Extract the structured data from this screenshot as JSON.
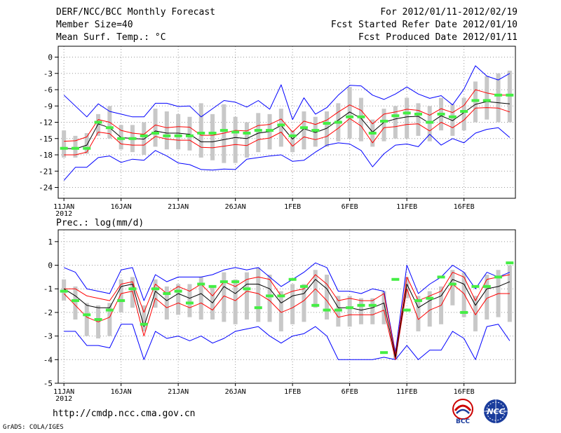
{
  "header": {
    "title": "DERF/NCC/BCC Monthly Forecast",
    "member_size": "Member Size=40",
    "variable": "Mean Surf. Temp.: °C",
    "period": "For 2012/01/11-2012/02/19",
    "started": "Fcst Started Refer Date 2012/01/10",
    "produced": "Fcst Produced Date 2012/01/11"
  },
  "footer": {
    "url": "http://cmdp.ncc.cma.gov.cn",
    "grads": "GrADS: COLA/IGES",
    "logo_bcc_text": "BCC",
    "logo_ncc_text": "NCC"
  },
  "colors": {
    "ensemble_mean": "#000000",
    "spread_lines": "#ff0000",
    "extreme_lines": "#0000ff",
    "member_box": "#c8c8c8",
    "climate_mark": "#44ee44",
    "grid": "#999999"
  },
  "chart_data": [
    {
      "type": "line",
      "title": "Mean Surf. Temp.: °C",
      "days": 40,
      "ylim": [
        -26,
        2
      ],
      "yticks": [
        0,
        -3,
        -6,
        -9,
        -12,
        -15,
        -18,
        -21,
        -24
      ],
      "xticks": [
        "11JAN\n2012",
        "16JAN",
        "21JAN",
        "26JAN",
        "1FEB",
        "6FEB",
        "11FEB",
        "16FEB"
      ],
      "mean": [
        -16.8,
        -16.9,
        -16.2,
        -12.3,
        -13.0,
        -14.8,
        -15.0,
        -15.1,
        -13.6,
        -14.0,
        -14.0,
        -14.2,
        -15.6,
        -15.6,
        -15.2,
        -14.8,
        -15.0,
        -14.0,
        -13.7,
        -12.6,
        -15.1,
        -13.2,
        -13.9,
        -13.1,
        -11.6,
        -10.1,
        -11.3,
        -13.8,
        -12.0,
        -11.4,
        -11.0,
        -10.9,
        -12.2,
        -10.8,
        -11.7,
        -10.2,
        -8.7,
        -8.2,
        -8.4,
        -8.6
      ],
      "red_upper": [
        -15.5,
        -15.4,
        -14.7,
        -11.5,
        -12.0,
        -13.5,
        -14.0,
        -14.2,
        -12.5,
        -13.0,
        -12.8,
        -12.9,
        -14.4,
        -14.4,
        -14.0,
        -13.5,
        -13.6,
        -12.6,
        -12.4,
        -11.4,
        -13.8,
        -11.8,
        -12.4,
        -11.6,
        -10.1,
        -8.8,
        -9.8,
        -12.3,
        -10.5,
        -10.1,
        -9.6,
        -9.8,
        -10.7,
        -9.5,
        -10.2,
        -8.9,
        -6.0,
        -6.6,
        -7.0,
        -7.0
      ],
      "red_lower": [
        -18.0,
        -18.0,
        -17.5,
        -13.8,
        -14.1,
        -16.0,
        -16.2,
        -16.2,
        -14.6,
        -15.1,
        -15.3,
        -15.3,
        -16.6,
        -16.7,
        -16.4,
        -16.1,
        -16.3,
        -15.2,
        -14.9,
        -13.8,
        -16.4,
        -14.7,
        -15.2,
        -14.6,
        -13.1,
        -11.3,
        -12.7,
        -15.8,
        -13.0,
        -12.8,
        -12.4,
        -12.3,
        -13.6,
        -12.0,
        -13.0,
        -11.6,
        -9.4,
        -9.3,
        -9.4,
        -10.1
      ],
      "blue_upper": [
        -7.0,
        -9.0,
        -11.0,
        -8.6,
        -10.0,
        -10.5,
        -11.0,
        -11.0,
        -8.5,
        -8.5,
        -9.1,
        -9.0,
        -11.0,
        -9.5,
        -8.0,
        -8.3,
        -9.2,
        -8.0,
        -9.6,
        -5.1,
        -11.5,
        -7.5,
        -10.5,
        -9.3,
        -7.0,
        -5.2,
        -5.3,
        -7.0,
        -7.8,
        -6.8,
        -5.5,
        -6.8,
        -7.6,
        -7.1,
        -8.8,
        -5.9,
        -1.6,
        -3.5,
        -4.2,
        -3.0
      ],
      "blue_lower": [
        -22.7,
        -20.3,
        -20.3,
        -18.5,
        -18.2,
        -19.4,
        -18.8,
        -19.0,
        -17.2,
        -18.2,
        -19.5,
        -19.8,
        -20.7,
        -20.8,
        -20.6,
        -20.7,
        -18.8,
        -18.5,
        -18.2,
        -18.0,
        -19.2,
        -19.0,
        -17.5,
        -16.2,
        -15.8,
        -16.0,
        -17.2,
        -20.2,
        -17.8,
        -16.2,
        -16.0,
        -16.5,
        -14.2,
        -16.2,
        -15.0,
        -15.8,
        -14.0,
        -13.3,
        -13.0,
        -14.8
      ],
      "box_top": [
        -13.5,
        -14.5,
        -14.0,
        -10.5,
        -9.0,
        -12.5,
        -12.5,
        -12.0,
        -9.5,
        -10.0,
        -10.5,
        -11.0,
        -8.5,
        -10.5,
        -8.7,
        -11.0,
        -12.0,
        -10.3,
        -10.5,
        -9.5,
        -13.5,
        -10.0,
        -11.0,
        -10.0,
        -8.5,
        -5.5,
        -7.5,
        -11.5,
        -9.5,
        -9.0,
        -7.5,
        -8.5,
        -9.0,
        -7.5,
        -8.7,
        -7.5,
        -4.5,
        -3.5,
        -3.0,
        -2.5
      ],
      "box_bottom": [
        -18.5,
        -18.5,
        -17.8,
        -14.5,
        -15.0,
        -17.0,
        -17.5,
        -18.0,
        -16.5,
        -17.0,
        -17.0,
        -17.2,
        -18.5,
        -19.0,
        -19.5,
        -19.5,
        -18.5,
        -17.5,
        -17.0,
        -16.5,
        -17.5,
        -17.0,
        -16.5,
        -16.5,
        -15.5,
        -15.0,
        -15.5,
        -16.5,
        -15.5,
        -15.0,
        -15.0,
        -14.5,
        -15.5,
        -13.5,
        -14.5,
        -13.5,
        -12.0,
        -11.5,
        -12.0,
        -12.0
      ],
      "climate": [
        -16.8,
        -16.8,
        -16.8,
        -12.0,
        -13.0,
        -15.0,
        -15.0,
        -14.5,
        -14.0,
        -14.5,
        -14.5,
        -14.5,
        -14.0,
        -14.0,
        -13.5,
        -13.8,
        -14.0,
        -13.5,
        -13.5,
        -12.5,
        -14.5,
        -13.0,
        -13.5,
        -12.2,
        -12.0,
        -11.0,
        -11.0,
        -14.0,
        -11.8,
        -10.8,
        -10.3,
        -10.5,
        -12.0,
        -10.5,
        -11.0,
        -10.0,
        -8.0,
        -8.0,
        -7.0,
        -7.0
      ]
    },
    {
      "type": "line",
      "title": "Prec.: log(mm/d)",
      "days": 40,
      "ylim": [
        -5,
        1.5
      ],
      "yticks": [
        1,
        0,
        -1,
        -2,
        -3,
        -4,
        -5
      ],
      "xticks": [
        "11JAN\n2012",
        "16JAN",
        "21JAN",
        "26JAN",
        "1FEB",
        "6FEB",
        "11FEB",
        "16FEB"
      ],
      "mean": [
        -1.0,
        -1.3,
        -1.7,
        -1.8,
        -1.8,
        -0.9,
        -0.8,
        -2.6,
        -1.1,
        -1.5,
        -1.2,
        -1.4,
        -1.2,
        -1.6,
        -0.9,
        -1.2,
        -0.8,
        -0.8,
        -1.0,
        -1.6,
        -1.3,
        -1.2,
        -0.6,
        -1.0,
        -1.8,
        -1.8,
        -1.9,
        -1.8,
        -1.6,
        -3.9,
        -0.8,
        -1.8,
        -1.5,
        -1.3,
        -0.6,
        -0.8,
        -1.7,
        -1.0,
        -0.9,
        -0.7
      ],
      "red_upper": [
        -1.0,
        -1.0,
        -1.3,
        -1.4,
        -1.5,
        -0.8,
        -0.7,
        -2.0,
        -0.8,
        -1.2,
        -0.9,
        -1.1,
        -0.8,
        -1.3,
        -0.7,
        -0.9,
        -0.6,
        -0.5,
        -0.6,
        -1.3,
        -1.1,
        -1.0,
        -0.4,
        -0.8,
        -1.5,
        -1.4,
        -1.5,
        -1.5,
        -1.2,
        -3.8,
        -0.5,
        -1.5,
        -1.3,
        -1.1,
        -0.3,
        -0.5,
        -1.5,
        -0.6,
        -0.5,
        -0.4
      ],
      "red_lower": [
        -1.2,
        -1.7,
        -2.2,
        -2.4,
        -2.2,
        -1.2,
        -1.1,
        -3.0,
        -1.4,
        -1.8,
        -1.6,
        -1.8,
        -1.6,
        -1.9,
        -1.3,
        -1.5,
        -1.1,
        -1.2,
        -1.5,
        -2.0,
        -1.8,
        -1.5,
        -1.0,
        -1.5,
        -2.2,
        -2.1,
        -2.1,
        -2.1,
        -1.9,
        -4.0,
        -1.0,
        -2.3,
        -1.9,
        -1.7,
        -0.8,
        -1.2,
        -2.1,
        -1.4,
        -1.2,
        -1.2
      ],
      "blue_upper": [
        -0.1,
        -0.3,
        -1.0,
        -1.1,
        -1.2,
        -0.2,
        -0.1,
        -1.5,
        -0.4,
        -0.7,
        -0.5,
        -0.5,
        -0.5,
        -0.4,
        -0.2,
        -0.1,
        -0.2,
        -0.1,
        -0.5,
        -0.9,
        -0.6,
        -0.3,
        0.1,
        -0.1,
        -1.1,
        -1.1,
        -1.2,
        -1.0,
        -1.1,
        -3.7,
        0.0,
        -1.2,
        -0.8,
        -0.5,
        0.0,
        -0.3,
        -1.0,
        -0.3,
        -0.5,
        -0.3
      ],
      "blue_lower": [
        -2.8,
        -2.8,
        -3.4,
        -3.4,
        -3.5,
        -2.5,
        -2.5,
        -4.0,
        -2.8,
        -3.1,
        -3.0,
        -3.2,
        -3.0,
        -3.3,
        -3.1,
        -2.8,
        -2.7,
        -2.6,
        -3.0,
        -3.3,
        -3.0,
        -2.9,
        -2.6,
        -3.0,
        -4.0,
        -4.0,
        -4.0,
        -4.0,
        -3.9,
        -4.0,
        -3.4,
        -4.0,
        -3.6,
        -3.6,
        -2.8,
        -3.1,
        -4.0,
        -2.6,
        -2.5,
        -3.2
      ],
      "box_top": [
        -0.6,
        -0.9,
        -1.6,
        -1.7,
        -1.6,
        -0.6,
        -0.5,
        -1.7,
        -0.6,
        -0.9,
        -0.8,
        -0.8,
        -0.5,
        -0.9,
        -0.3,
        -0.6,
        -0.3,
        -0.1,
        -0.4,
        -1.1,
        -0.8,
        -0.8,
        -0.2,
        -0.4,
        -1.3,
        -1.3,
        -1.4,
        -1.4,
        -1.1,
        -3.5,
        -0.5,
        -1.3,
        -1.1,
        -0.9,
        -0.2,
        -0.3,
        -1.3,
        -0.4,
        -0.2,
        0.0
      ],
      "box_bottom": [
        -1.5,
        -2.3,
        -3.0,
        -3.1,
        -3.0,
        -2.0,
        -1.8,
        -2.8,
        -1.8,
        -2.3,
        -2.1,
        -2.2,
        -2.3,
        -2.3,
        -2.4,
        -2.5,
        -2.3,
        -2.4,
        -2.4,
        -2.8,
        -2.5,
        -2.4,
        -1.8,
        -2.3,
        -2.6,
        -2.6,
        -2.5,
        -2.5,
        -2.5,
        -4.0,
        -1.4,
        -2.8,
        -2.6,
        -2.5,
        -1.7,
        -2.2,
        -2.8,
        -2.3,
        -2.2,
        -2.4
      ],
      "climate": [
        -1.1,
        -1.5,
        -2.1,
        -2.3,
        -1.9,
        -1.5,
        -1.0,
        -2.5,
        -1.0,
        -1.2,
        -1.1,
        -1.6,
        -0.8,
        -0.9,
        -0.7,
        -0.7,
        -1.0,
        -1.8,
        -1.3,
        -1.3,
        -0.6,
        -0.9,
        -1.7,
        -1.9,
        -1.9,
        -1.8,
        -1.7,
        -1.7,
        -3.7,
        -0.6,
        -1.9,
        -1.5,
        -1.4,
        -0.5,
        -0.8,
        -2.0,
        -0.9,
        -0.9,
        -0.5,
        0.1
      ]
    }
  ]
}
